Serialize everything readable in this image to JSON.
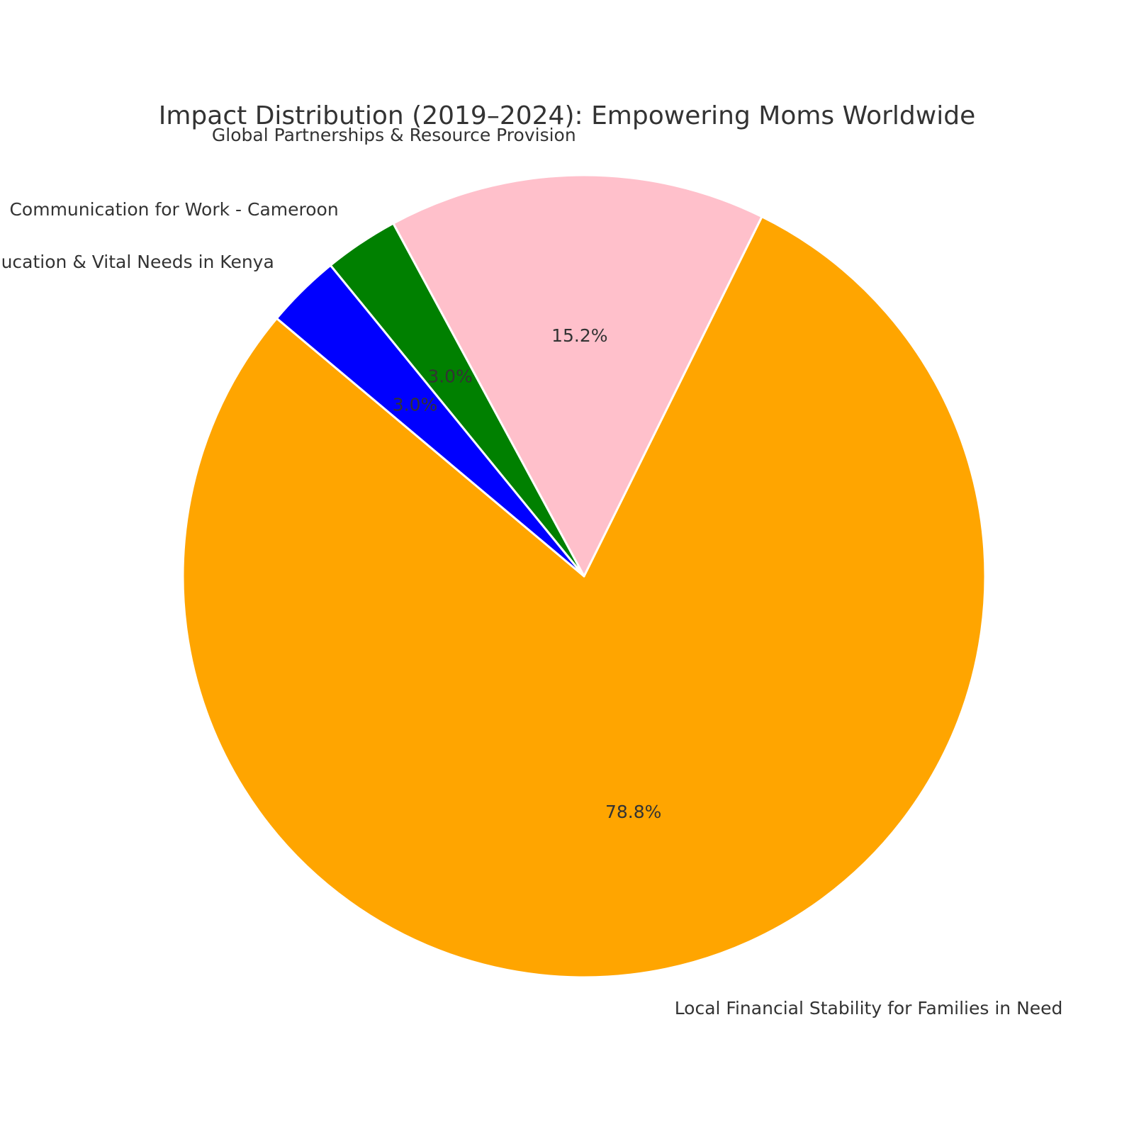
{
  "chart_data": {
    "type": "pie",
    "title": "Impact Distribution (2019–2024): Empowering Moms Worldwide",
    "slices": [
      {
        "label": "Local Financial Stability for Families in Need",
        "value": 78.8,
        "pct_label": "78.8%",
        "color": "#FFA500"
      },
      {
        "label": "Global Partnerships & Resource Provision",
        "value": 15.2,
        "pct_label": "15.2%",
        "color": "#FFC0CB"
      },
      {
        "label": "Communication for Work - Cameroon",
        "value": 3.0,
        "pct_label": "3.0%",
        "color": "#008000"
      },
      {
        "label": "Education & Vital Needs in Kenya",
        "value": 3.0,
        "pct_label": "3.0%",
        "color": "#0000FF"
      }
    ]
  }
}
